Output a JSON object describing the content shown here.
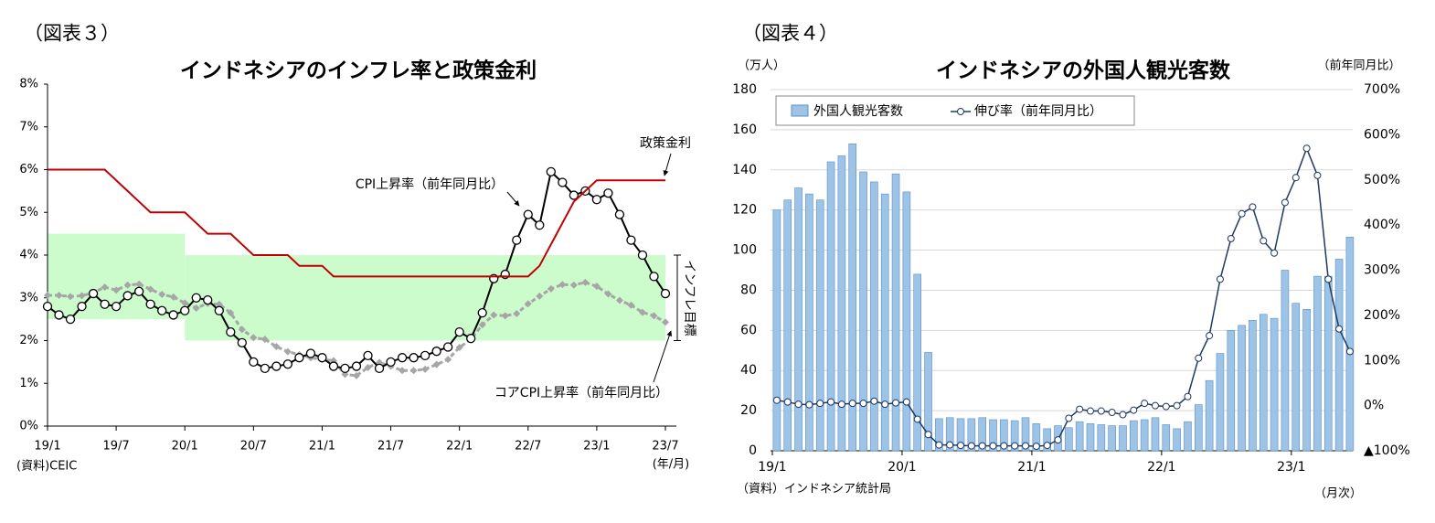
{
  "chart_data": [
    {
      "type": "line",
      "figure": "（図表３）",
      "title": "インドネシアのインフレ率と政策金利",
      "categories": [
        "19/1",
        null,
        null,
        null,
        null,
        null,
        "19/7",
        null,
        null,
        null,
        null,
        null,
        "20/1",
        null,
        null,
        null,
        null,
        null,
        "20/7",
        null,
        null,
        null,
        null,
        null,
        "21/1",
        null,
        null,
        null,
        null,
        null,
        "21/7",
        null,
        null,
        null,
        null,
        null,
        "22/1",
        null,
        null,
        null,
        null,
        null,
        "22/7",
        null,
        null,
        null,
        null,
        null,
        "23/1",
        null,
        null,
        null,
        null,
        null,
        "23/7"
      ],
      "x_unit": "(年/月)",
      "source": "(資料)CEIC",
      "ylim": [
        0,
        8
      ],
      "yticks": [
        {
          "value": 0,
          "label": "0%"
        },
        {
          "value": 1,
          "label": "1%"
        },
        {
          "value": 2,
          "label": "2%"
        },
        {
          "value": 3,
          "label": "3%"
        },
        {
          "value": 4,
          "label": "4%"
        },
        {
          "value": 5,
          "label": "5%"
        },
        {
          "value": 6,
          "label": "6%"
        },
        {
          "value": 7,
          "label": "7%"
        },
        {
          "value": 8,
          "label": "8%"
        }
      ],
      "inflation_target": {
        "label": "インフレ目標",
        "color": "#ccfccc",
        "bands": [
          {
            "from": "19/1",
            "to": "20/1",
            "low": 2.5,
            "high": 4.5
          },
          {
            "from": "20/1",
            "to": "23/7",
            "low": 2,
            "high": 4
          }
        ]
      },
      "series": [
        {
          "name": "政策金利",
          "color": "#c00000",
          "marker": "none",
          "dashed": false,
          "values": [
            6,
            6,
            6,
            6,
            6,
            6,
            5.75,
            5.5,
            5.25,
            5,
            5,
            5,
            5,
            4.75,
            4.5,
            4.5,
            4.5,
            4.25,
            4,
            4,
            4,
            4,
            3.75,
            3.75,
            3.75,
            3.5,
            3.5,
            3.5,
            3.5,
            3.5,
            3.5,
            3.5,
            3.5,
            3.5,
            3.5,
            3.5,
            3.5,
            3.5,
            3.5,
            3.5,
            3.5,
            3.5,
            3.5,
            3.75,
            4.25,
            4.75,
            5.25,
            5.5,
            5.75,
            5.75,
            5.75,
            5.75,
            5.75,
            5.75,
            5.75
          ]
        },
        {
          "name": "CPI上昇率（前年同月比）",
          "color": "#000000",
          "marker": "circle",
          "dashed": false,
          "values": [
            2.8,
            2.6,
            2.5,
            2.8,
            3.1,
            2.85,
            2.8,
            3.05,
            3.15,
            2.85,
            2.7,
            2.6,
            2.7,
            3.0,
            2.95,
            2.7,
            2.2,
            1.95,
            1.5,
            1.35,
            1.4,
            1.45,
            1.6,
            1.7,
            1.6,
            1.4,
            1.35,
            1.4,
            1.65,
            1.35,
            1.5,
            1.6,
            1.6,
            1.65,
            1.75,
            1.85,
            2.2,
            2.05,
            2.65,
            3.45,
            3.55,
            4.35,
            4.95,
            4.7,
            5.95,
            5.7,
            5.4,
            5.5,
            5.3,
            5.45,
            4.95,
            4.35,
            4.0,
            3.5,
            3.1
          ]
        },
        {
          "name": "コアCPI上昇率（前年同月比）",
          "color": "#a6a6a6",
          "marker": "diamond",
          "dashed": true,
          "values": [
            3.06,
            3.06,
            3.03,
            3.05,
            3.12,
            3.25,
            3.18,
            3.3,
            3.32,
            3.2,
            3.08,
            3.02,
            2.88,
            2.76,
            2.87,
            2.85,
            2.65,
            2.26,
            2.07,
            2.03,
            1.86,
            1.74,
            1.67,
            1.6,
            1.56,
            1.53,
            1.21,
            1.18,
            1.37,
            1.49,
            1.4,
            1.3,
            1.3,
            1.33,
            1.44,
            1.56,
            1.84,
            2.03,
            2.37,
            2.6,
            2.58,
            2.63,
            2.86,
            3.04,
            3.21,
            3.31,
            3.3,
            3.36,
            3.27,
            3.09,
            2.94,
            2.83,
            2.66,
            2.58,
            2.43
          ]
        }
      ]
    },
    {
      "type": "bar",
      "figure": "（図表４）",
      "title": "インドネシアの外国人観光客数",
      "y_unit": "（万人）",
      "y2_unit": "（前年同月比）",
      "x_unit": "（月次）",
      "source": "（資料）インドネシア統計局",
      "categories": [
        "19/1",
        null,
        null,
        null,
        null,
        null,
        null,
        null,
        null,
        null,
        null,
        null,
        "20/1",
        null,
        null,
        null,
        null,
        null,
        null,
        null,
        null,
        null,
        null,
        null,
        "21/1",
        null,
        null,
        null,
        null,
        null,
        null,
        null,
        null,
        null,
        null,
        null,
        "22/1",
        null,
        null,
        null,
        null,
        null,
        null,
        null,
        null,
        null,
        null,
        null,
        "23/1",
        null,
        null,
        null,
        null,
        null
      ],
      "ylim": [
        0,
        180
      ],
      "yticks": [
        0,
        20,
        40,
        60,
        80,
        100,
        120,
        140,
        160,
        180
      ],
      "y2lim": [
        -100,
        700
      ],
      "y2ticks": [
        {
          "value": -100,
          "label": "▲100%"
        },
        {
          "value": 0,
          "label": "0%"
        },
        {
          "value": 100,
          "label": "100%"
        },
        {
          "value": 200,
          "label": "200%"
        },
        {
          "value": 300,
          "label": "300%"
        },
        {
          "value": 400,
          "label": "400%"
        },
        {
          "value": 500,
          "label": "500%"
        },
        {
          "value": 600,
          "label": "600%"
        },
        {
          "value": 700,
          "label": "700%"
        }
      ],
      "grid": true,
      "series": [
        {
          "name": "外国人観光客数",
          "type": "bar",
          "color": "#9dc3e6",
          "values": [
            120,
            125,
            131,
            128,
            125,
            144,
            147,
            153,
            139,
            134,
            128,
            138,
            129,
            88,
            49,
            16,
            16.5,
            16,
            16,
            16.5,
            15.5,
            15.5,
            15,
            16.5,
            13.5,
            11,
            12.5,
            11.5,
            14.5,
            13.5,
            13,
            12.5,
            12.5,
            15,
            15.5,
            16.5,
            13,
            11,
            14.5,
            23,
            35,
            48.5,
            60,
            62.5,
            65,
            68,
            66,
            90,
            73.5,
            70.5,
            87,
            87,
            95.5,
            106.5
          ]
        },
        {
          "name": "伸び率（前年同月比）",
          "type": "line",
          "axis": "y2",
          "color": "#1f3864",
          "values": [
            12,
            8,
            3,
            2,
            5,
            8,
            3,
            5,
            5,
            10,
            3,
            6,
            8,
            -30,
            -64,
            -87,
            -87,
            -88,
            -89,
            -89,
            -89,
            -89,
            -89,
            -89,
            -90,
            -88,
            -76,
            -28,
            -8,
            -12,
            -12,
            -15,
            -20,
            -10,
            5,
            0,
            -2,
            0,
            20,
            105,
            155,
            280,
            370,
            425,
            440,
            365,
            338,
            450,
            505,
            570,
            510,
            280,
            170,
            120
          ]
        }
      ]
    }
  ]
}
